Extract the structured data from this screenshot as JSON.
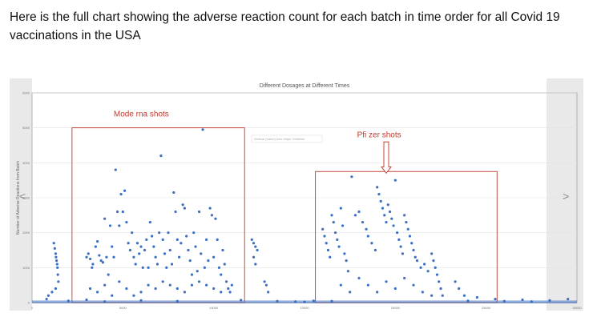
{
  "intro_text": "Here is the full chart showing the adverse reaction count for each batch in time order for all Covid 19 vaccinations in the USA",
  "chart_data": {
    "type": "scatter",
    "title": "Different Dosages at Different Times",
    "ylabel": "Number of Adverse Reactions from Batch",
    "xlabel": "",
    "xlim": [
      0,
      30000
    ],
    "ylim": [
      0,
      6000
    ],
    "x_ticks": [
      0,
      5000,
      10000,
      15000,
      20000,
      25000,
      30000
    ],
    "y_ticks": [
      0,
      1000,
      2000,
      3000,
      4000,
      5000,
      6000
    ],
    "x_tick_labels": [
      "0",
      "5000",
      "10000",
      "15000",
      "20000",
      "25000",
      "30000"
    ],
    "y_tick_labels": [
      "0",
      "1000",
      "2000",
      "3000",
      "4000",
      "5000",
      "6000"
    ],
    "grid": "horizontal",
    "point_color": "#3a6fc4",
    "overlay_note": "Vertical (Value) Axis Major Gridlines",
    "annotations": [
      {
        "label": "Mode rna shots",
        "color": "#c0392b",
        "box": {
          "x0": 2200,
          "x1": 11700,
          "y0": 0,
          "y1": 5000
        }
      },
      {
        "label": "Pfi zer shots",
        "color": "#c0392b",
        "box": {
          "x0": 15600,
          "x1": 25600,
          "y0": 0,
          "y1": 3750
        },
        "arrow_to": [
          19500,
          3700
        ]
      }
    ],
    "points": [
      [
        1200,
        1700
      ],
      [
        1250,
        1550
      ],
      [
        1300,
        1400
      ],
      [
        1320,
        1300
      ],
      [
        1350,
        1200
      ],
      [
        1380,
        1100
      ],
      [
        1400,
        1000
      ],
      [
        1420,
        800
      ],
      [
        1450,
        600
      ],
      [
        1300,
        400
      ],
      [
        1100,
        300
      ],
      [
        900,
        200
      ],
      [
        800,
        100
      ],
      [
        3000,
        1300
      ],
      [
        3100,
        1400
      ],
      [
        3200,
        1250
      ],
      [
        3300,
        1000
      ],
      [
        3350,
        1100
      ],
      [
        3500,
        1600
      ],
      [
        3600,
        1750
      ],
      [
        3700,
        1350
      ],
      [
        3800,
        1200
      ],
      [
        3900,
        1150
      ],
      [
        4000,
        2400
      ],
      [
        4100,
        1300
      ],
      [
        4200,
        800
      ],
      [
        4300,
        2200
      ],
      [
        4400,
        1600
      ],
      [
        4500,
        1300
      ],
      [
        4600,
        3800
      ],
      [
        4700,
        2600
      ],
      [
        4800,
        2200
      ],
      [
        4900,
        3100
      ],
      [
        5000,
        2600
      ],
      [
        5100,
        3200
      ],
      [
        5200,
        2300
      ],
      [
        5300,
        1700
      ],
      [
        5400,
        1500
      ],
      [
        5500,
        2000
      ],
      [
        5600,
        1300
      ],
      [
        5700,
        1100
      ],
      [
        5800,
        1700
      ],
      [
        5900,
        1400
      ],
      [
        6000,
        1600
      ],
      [
        6100,
        1000
      ],
      [
        6200,
        1500
      ],
      [
        6300,
        1800
      ],
      [
        6400,
        1000
      ],
      [
        6500,
        2300
      ],
      [
        6600,
        1900
      ],
      [
        6700,
        1600
      ],
      [
        6800,
        1300
      ],
      [
        6900,
        1100
      ],
      [
        7000,
        2000
      ],
      [
        7100,
        4200
      ],
      [
        7200,
        1800
      ],
      [
        7300,
        1400
      ],
      [
        7400,
        1000
      ],
      [
        7500,
        2000
      ],
      [
        7600,
        1500
      ],
      [
        7700,
        1100
      ],
      [
        7800,
        3150
      ],
      [
        7900,
        2600
      ],
      [
        8000,
        1800
      ],
      [
        8100,
        1300
      ],
      [
        8200,
        1700
      ],
      [
        8300,
        2800
      ],
      [
        8400,
        2700
      ],
      [
        8500,
        1900
      ],
      [
        8600,
        1500
      ],
      [
        8700,
        1200
      ],
      [
        8800,
        800
      ],
      [
        8900,
        2000
      ],
      [
        9000,
        1600
      ],
      [
        9100,
        900
      ],
      [
        9200,
        2600
      ],
      [
        9300,
        1400
      ],
      [
        9400,
        4950
      ],
      [
        9500,
        1000
      ],
      [
        9600,
        1800
      ],
      [
        9700,
        1200
      ],
      [
        9800,
        2700
      ],
      [
        9900,
        2500
      ],
      [
        10000,
        1300
      ],
      [
        10100,
        2400
      ],
      [
        10200,
        1800
      ],
      [
        10300,
        1000
      ],
      [
        10400,
        800
      ],
      [
        10500,
        1500
      ],
      [
        10600,
        1100
      ],
      [
        10700,
        600
      ],
      [
        10800,
        400
      ],
      [
        10900,
        300
      ],
      [
        11000,
        500
      ],
      [
        3200,
        400
      ],
      [
        3600,
        300
      ],
      [
        4000,
        500
      ],
      [
        4400,
        200
      ],
      [
        4800,
        600
      ],
      [
        5200,
        400
      ],
      [
        5600,
        200
      ],
      [
        6000,
        300
      ],
      [
        6400,
        500
      ],
      [
        6800,
        400
      ],
      [
        7200,
        600
      ],
      [
        7600,
        500
      ],
      [
        8000,
        400
      ],
      [
        8400,
        300
      ],
      [
        8800,
        500
      ],
      [
        9200,
        600
      ],
      [
        9600,
        500
      ],
      [
        10000,
        400
      ],
      [
        10400,
        300
      ],
      [
        12100,
        1800
      ],
      [
        12200,
        1700
      ],
      [
        12300,
        1600
      ],
      [
        12400,
        1500
      ],
      [
        12200,
        1300
      ],
      [
        12300,
        1100
      ],
      [
        12800,
        600
      ],
      [
        12900,
        500
      ],
      [
        13000,
        300
      ],
      [
        16000,
        2100
      ],
      [
        16100,
        1900
      ],
      [
        16200,
        1700
      ],
      [
        16300,
        1500
      ],
      [
        16400,
        1300
      ],
      [
        16500,
        2500
      ],
      [
        16600,
        2300
      ],
      [
        16700,
        2000
      ],
      [
        16800,
        1800
      ],
      [
        16900,
        1600
      ],
      [
        17000,
        2700
      ],
      [
        17100,
        2200
      ],
      [
        17200,
        1400
      ],
      [
        17300,
        1200
      ],
      [
        17400,
        900
      ],
      [
        17600,
        3600
      ],
      [
        17800,
        2500
      ],
      [
        18000,
        2600
      ],
      [
        18200,
        2300
      ],
      [
        18400,
        2100
      ],
      [
        18500,
        1900
      ],
      [
        18700,
        1700
      ],
      [
        18900,
        1500
      ],
      [
        19000,
        3300
      ],
      [
        19100,
        3100
      ],
      [
        19200,
        2900
      ],
      [
        19300,
        2700
      ],
      [
        19400,
        2500
      ],
      [
        19500,
        2300
      ],
      [
        19600,
        2800
      ],
      [
        19700,
        2600
      ],
      [
        19800,
        2400
      ],
      [
        19900,
        2200
      ],
      [
        20000,
        3500
      ],
      [
        20100,
        2000
      ],
      [
        20200,
        1800
      ],
      [
        20300,
        1600
      ],
      [
        20400,
        1400
      ],
      [
        20500,
        2500
      ],
      [
        20600,
        2300
      ],
      [
        20700,
        2100
      ],
      [
        20800,
        1900
      ],
      [
        20900,
        1700
      ],
      [
        21000,
        1500
      ],
      [
        21100,
        1300
      ],
      [
        21200,
        1200
      ],
      [
        21400,
        1000
      ],
      [
        21600,
        1100
      ],
      [
        21800,
        900
      ],
      [
        22000,
        1400
      ],
      [
        22100,
        1200
      ],
      [
        22200,
        1000
      ],
      [
        22300,
        800
      ],
      [
        22400,
        600
      ],
      [
        22500,
        400
      ],
      [
        22600,
        200
      ],
      [
        17000,
        500
      ],
      [
        17500,
        300
      ],
      [
        18000,
        700
      ],
      [
        18500,
        500
      ],
      [
        19000,
        300
      ],
      [
        19500,
        600
      ],
      [
        20000,
        400
      ],
      [
        20500,
        700
      ],
      [
        21000,
        500
      ],
      [
        21500,
        300
      ],
      [
        22000,
        200
      ],
      [
        23300,
        600
      ],
      [
        23500,
        400
      ],
      [
        23800,
        200
      ],
      [
        24500,
        150
      ],
      [
        25500,
        100
      ],
      [
        27000,
        80
      ],
      [
        28500,
        60
      ],
      [
        29500,
        100
      ],
      [
        2000,
        50
      ],
      [
        3000,
        80
      ],
      [
        4000,
        30
      ],
      [
        6000,
        60
      ],
      [
        8000,
        40
      ],
      [
        11500,
        70
      ],
      [
        13500,
        40
      ],
      [
        14500,
        30
      ],
      [
        15000,
        20
      ],
      [
        15500,
        50
      ],
      [
        16500,
        40
      ],
      [
        24000,
        50
      ],
      [
        26000,
        40
      ],
      [
        27500,
        30
      ]
    ]
  },
  "nav": {
    "prev_label": "<",
    "next_label": ">"
  }
}
